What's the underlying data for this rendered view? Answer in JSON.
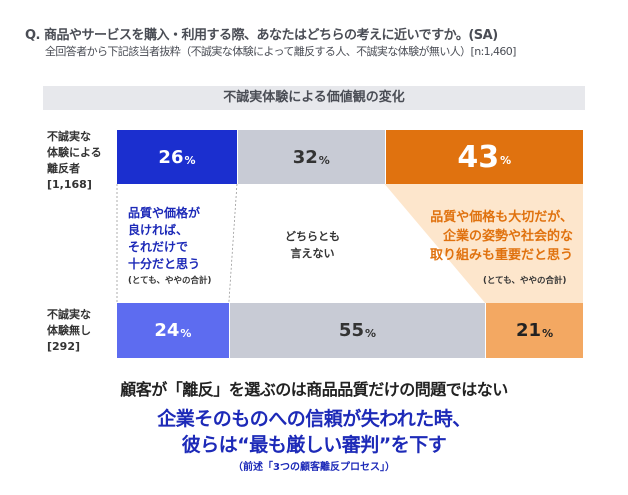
{
  "question": "Q. 商品やサービスを購入・利用する際、あなたはどちらの考えに近いですか。(SA)",
  "subtitle": "全回答者から下記該当者抜粋（不誠実な体験によって離反する人、不誠実な体験が無い人）[n:1,460]",
  "colors": {
    "blue_dark": "#1b2fcf",
    "blue_light": "#5d6cf0",
    "gray": "#c8cbd5",
    "orange_dark": "#e0720f",
    "orange_light": "#f3a862",
    "orange_band": "#fde6cc",
    "text_blue": "#1d2ab8",
    "text_orange": "#e0720f"
  },
  "chart_data": {
    "type": "bar",
    "stacked": true,
    "orientation": "horizontal",
    "title": "不誠実体験による価値観の変化",
    "categories": [
      "不誠実な\n体験による\n離反者\n[1,168]",
      "不誠実な\n体験無し\n[292]"
    ],
    "series": [
      {
        "name": "品質や価格が\n良ければ、\nそれだけで\n十分だと思う",
        "values": [
          26,
          24
        ]
      },
      {
        "name": "どちらとも\n言えない",
        "values": [
          32,
          55
        ]
      },
      {
        "name": "品質や価格も大切だが、\n企業の姿勢や社会的な\n取り組みも重要だと思う",
        "values": [
          43,
          21
        ]
      }
    ],
    "unit": "%",
    "series_note": "(とても、ややの合計)"
  },
  "message": {
    "line1": "顧客が「離反」を選ぶのは商品品質だけの問題ではない",
    "line2": "企業そのものへの信頼が失われた時、",
    "line3": "彼らは“最も厳しい審判”を下す",
    "line4": "（前述「3つの顧客離反プロセス」）"
  }
}
